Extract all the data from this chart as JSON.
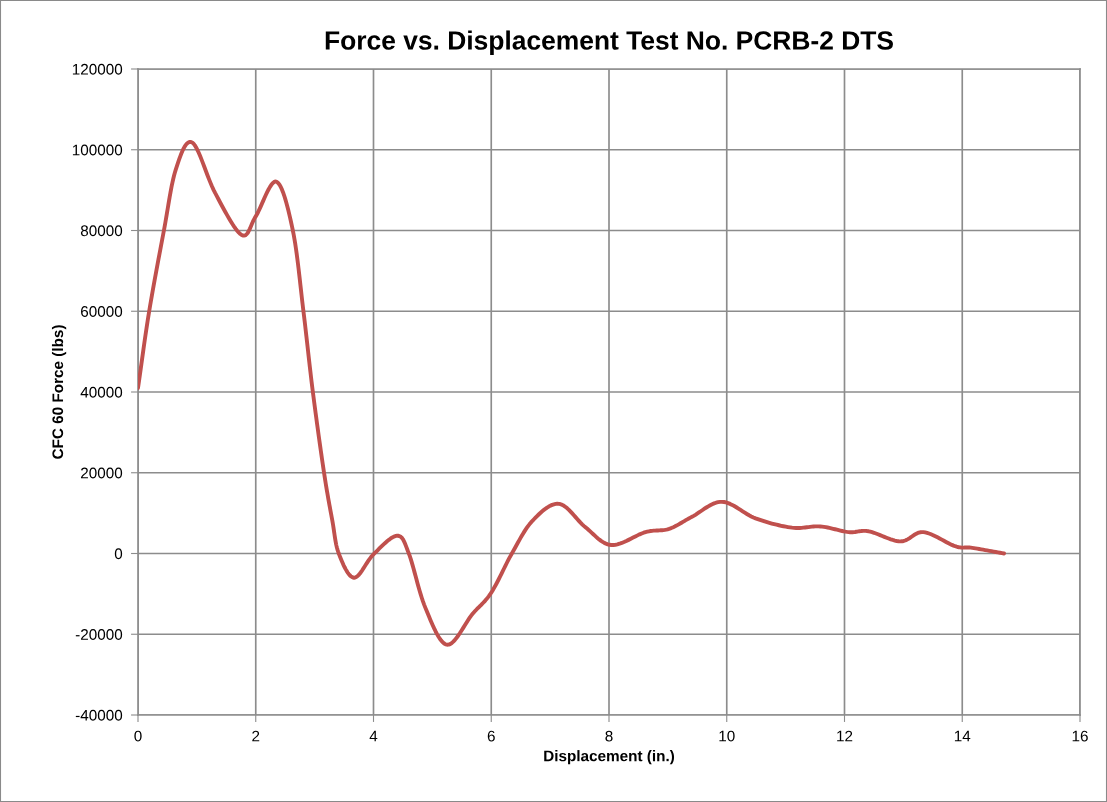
{
  "chart_data": {
    "type": "line",
    "title": "Force vs. Displacement Test No. PCRB-2 DTS",
    "xlabel": "Displacement (in.)",
    "ylabel": "CFC 60 Force (lbs)",
    "x": [
      0,
      0.19,
      0.44,
      0.64,
      0.92,
      1.31,
      1.76,
      2.0,
      2.35,
      2.63,
      2.81,
      2.97,
      3.16,
      3.3,
      3.41,
      3.67,
      4.0,
      4.4,
      4.6,
      4.88,
      5.25,
      5.68,
      6.0,
      6.35,
      6.7,
      7.15,
      7.6,
      8.04,
      8.62,
      9.02,
      9.41,
      9.92,
      10.49,
      11.11,
      11.59,
      12.07,
      12.41,
      12.95,
      13.34,
      13.88,
      14.17,
      14.71
    ],
    "series": [
      {
        "color": "#c0504d",
        "values": [
          41000,
          60000,
          80000,
          95000,
          101800,
          89300,
          78900,
          83500,
          92100,
          80000,
          60000,
          40000,
          20000,
          8200,
          0,
          -6000,
          -200,
          4400,
          0,
          -13400,
          -22600,
          -15000,
          -9700,
          0,
          8100,
          12300,
          6500,
          2100,
          5300,
          6100,
          9100,
          12800,
          8700,
          6400,
          6700,
          5300,
          5500,
          3000,
          5300,
          1800,
          1400,
          0
        ]
      }
    ],
    "xlim": [
      0,
      16
    ],
    "xticks": [
      0,
      2,
      4,
      6,
      8,
      10,
      12,
      14,
      16
    ],
    "ylim": [
      -40000,
      120000
    ],
    "yticks": [
      -40000,
      -20000,
      0,
      20000,
      40000,
      60000,
      80000,
      100000,
      120000
    ],
    "grid": true
  }
}
